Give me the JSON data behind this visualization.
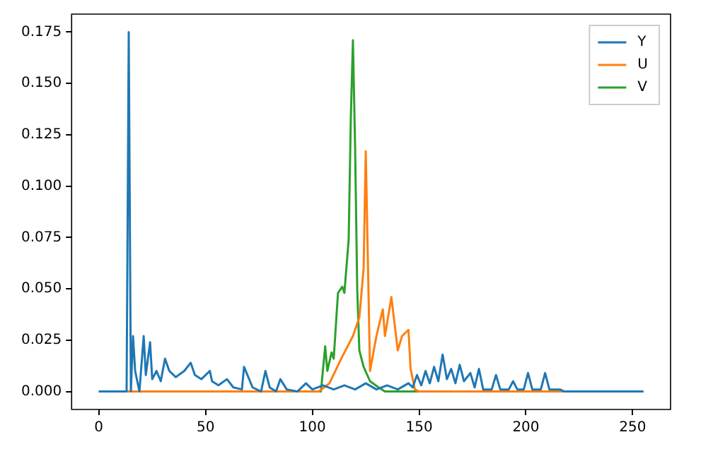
{
  "chart_data": {
    "type": "line",
    "legend": "top right",
    "grid": false,
    "marker": "none",
    "line_style": "solid",
    "xlim": [
      -12.75,
      267.75
    ],
    "xticks": [
      0,
      50,
      100,
      150,
      200,
      250
    ],
    "ylim": [
      -0.00875,
      0.18375
    ],
    "yticks": [
      {
        "value": 0,
        "label": "0.000"
      },
      {
        "value": 0.025,
        "label": "0.025"
      },
      {
        "value": 0.05,
        "label": "0.050"
      },
      {
        "value": 0.075,
        "label": "0.075"
      },
      {
        "value": 0.1,
        "label": "0.100"
      },
      {
        "value": 0.125,
        "label": "0.125"
      },
      {
        "value": 0.15,
        "label": "0.150"
      },
      {
        "value": 0.175,
        "label": "0.175"
      }
    ],
    "series": [
      {
        "name": "Y",
        "color": "#1f77b4",
        "x": [
          0,
          13,
          14,
          15,
          16,
          17,
          18,
          19,
          21,
          22,
          24,
          25,
          27,
          29,
          31,
          33,
          36,
          40,
          43,
          45,
          48,
          52,
          53,
          56,
          60,
          63,
          67,
          68,
          72,
          76,
          78,
          80,
          83,
          85,
          88,
          93,
          97,
          100,
          105,
          110,
          115,
          120,
          125,
          130,
          135,
          140,
          145,
          147,
          149,
          151,
          153,
          155,
          157,
          159,
          161,
          163,
          165,
          167,
          169,
          171,
          174,
          176,
          178,
          180,
          184,
          186,
          188,
          192,
          194,
          196,
          199,
          201,
          203,
          207,
          209,
          211,
          214,
          216,
          218,
          255
        ],
        "values": [
          0,
          0,
          0.175,
          0,
          0.027,
          0.01,
          0.005,
          0,
          0.027,
          0.008,
          0.024,
          0.006,
          0.01,
          0.005,
          0.016,
          0.01,
          0.007,
          0.01,
          0.014,
          0.008,
          0.006,
          0.01,
          0.005,
          0.003,
          0.006,
          0.002,
          0.001,
          0.012,
          0.002,
          0,
          0.01,
          0.002,
          0,
          0.006,
          0.001,
          0,
          0.004,
          0.001,
          0.003,
          0.001,
          0.003,
          0.001,
          0.004,
          0.001,
          0.003,
          0.001,
          0.004,
          0.002,
          0.008,
          0.003,
          0.01,
          0.004,
          0.012,
          0.005,
          0.018,
          0.006,
          0.011,
          0.004,
          0.013,
          0.005,
          0.009,
          0.002,
          0.011,
          0.001,
          0.001,
          0.008,
          0.001,
          0.001,
          0.005,
          0.001,
          0.001,
          0.009,
          0.001,
          0.001,
          0.009,
          0.001,
          0.001,
          0.001,
          0,
          0
        ]
      },
      {
        "name": "U",
        "color": "#ff7f0e",
        "x": [
          0,
          103,
          108,
          114,
          119,
          122,
          124,
          125,
          127,
          130,
          133,
          134,
          137,
          140,
          142,
          145,
          146,
          148,
          150,
          255
        ],
        "values": [
          0,
          0,
          0.004,
          0.017,
          0.027,
          0.036,
          0.06,
          0.117,
          0.01,
          0.027,
          0.04,
          0.027,
          0.046,
          0.02,
          0.027,
          0.03,
          0.011,
          0.001,
          0,
          0
        ]
      },
      {
        "name": "V",
        "color": "#2ca02c",
        "x": [
          0,
          104,
          106,
          107,
          109,
          110,
          112,
          114,
          115,
          117,
          118,
          119,
          120,
          121,
          122,
          124,
          127,
          131,
          134,
          255
        ],
        "values": [
          0,
          0,
          0.022,
          0.01,
          0.019,
          0.016,
          0.048,
          0.051,
          0.048,
          0.074,
          0.133,
          0.171,
          0.12,
          0.05,
          0.02,
          0.012,
          0.005,
          0.002,
          0,
          0
        ]
      }
    ]
  }
}
